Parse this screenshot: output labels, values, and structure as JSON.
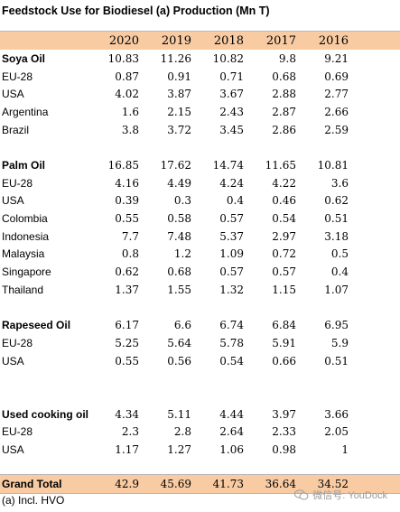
{
  "title": "Feedstock Use for Biodiesel (a) Production (Mn T)",
  "years": [
    "2020",
    "2019",
    "2018",
    "2017",
    "2016"
  ],
  "groups": [
    {
      "name": "Soya Oil",
      "values": [
        "10.83",
        "11.26",
        "10.82",
        "9.8",
        "9.21"
      ],
      "rows": [
        {
          "label": "EU-28",
          "values": [
            "0.87",
            "0.91",
            "0.71",
            "0.68",
            "0.69"
          ]
        },
        {
          "label": "USA",
          "values": [
            "4.02",
            "3.87",
            "3.67",
            "2.88",
            "2.77"
          ]
        },
        {
          "label": "Argentina",
          "values": [
            "1.6",
            "2.15",
            "2.43",
            "2.87",
            "2.66"
          ]
        },
        {
          "label": "Brazil",
          "values": [
            "3.8",
            "3.72",
            "3.45",
            "2.86",
            "2.59"
          ]
        }
      ]
    },
    {
      "name": "Palm Oil",
      "values": [
        "16.85",
        "17.62",
        "14.74",
        "11.65",
        "10.81"
      ],
      "rows": [
        {
          "label": "EU-28",
          "values": [
            "4.16",
            "4.49",
            "4.24",
            "4.22",
            "3.6"
          ]
        },
        {
          "label": "USA",
          "values": [
            "0.39",
            "0.3",
            "0.4",
            "0.46",
            "0.62"
          ]
        },
        {
          "label": "Colombia",
          "values": [
            "0.55",
            "0.58",
            "0.57",
            "0.54",
            "0.51"
          ]
        },
        {
          "label": "Indonesia",
          "values": [
            "7.7",
            "7.48",
            "5.37",
            "2.97",
            "3.18"
          ]
        },
        {
          "label": "Malaysia",
          "values": [
            "0.8",
            "1.2",
            "1.09",
            "0.72",
            "0.5"
          ]
        },
        {
          "label": "Singapore",
          "values": [
            "0.62",
            "0.68",
            "0.57",
            "0.57",
            "0.4"
          ]
        },
        {
          "label": "Thailand",
          "values": [
            "1.37",
            "1.55",
            "1.32",
            "1.15",
            "1.07"
          ]
        }
      ]
    },
    {
      "name": "Rapeseed Oil",
      "values": [
        "6.17",
        "6.6",
        "6.74",
        "6.84",
        "6.95"
      ],
      "rows": [
        {
          "label": "EU-28",
          "values": [
            "5.25",
            "5.64",
            "5.78",
            "5.91",
            "5.9"
          ]
        },
        {
          "label": "USA",
          "values": [
            "0.55",
            "0.56",
            "0.54",
            "0.66",
            "0.51"
          ]
        }
      ]
    },
    {
      "name": "Used cooking oil",
      "values": [
        "4.34",
        "5.11",
        "4.44",
        "3.97",
        "3.66"
      ],
      "rows": [
        {
          "label": "EU-28",
          "values": [
            "2.3",
            "2.8",
            "2.64",
            "2.33",
            "2.05"
          ]
        },
        {
          "label": "USA",
          "values": [
            "1.17",
            "1.27",
            "1.06",
            "0.98",
            "1"
          ]
        }
      ]
    }
  ],
  "grand_total": {
    "label": "Grand Total",
    "values": [
      "42.9",
      "45.69",
      "41.73",
      "36.64",
      "34.52"
    ]
  },
  "footnote": "(a) Incl. HVO",
  "watermark": "微信号: YouDock",
  "colors": {
    "header_bg": "#f8cba2"
  }
}
